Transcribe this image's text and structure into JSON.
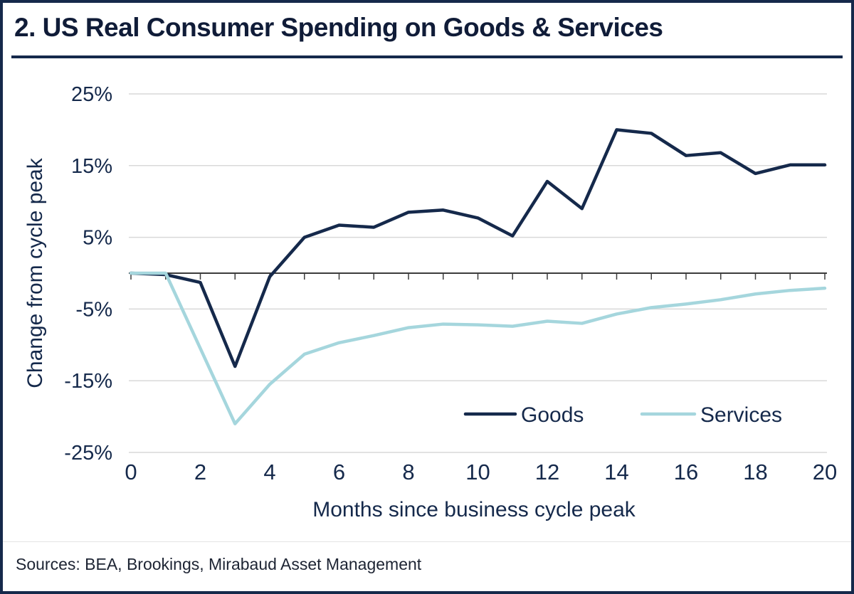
{
  "title": "2. US Real Consumer Spending on Goods & Services",
  "footer": {
    "sources": "Sources: BEA, Brookings, Mirabaud Asset Management"
  },
  "colors": {
    "navy": "#15294b",
    "title": "#101c38",
    "services": "#a5d6dd",
    "grid": "#d9d9d9",
    "zero": "#3c3c3c",
    "ink": "#1d2433"
  },
  "chart_data": {
    "type": "line",
    "title": "2. US Real Consumer Spending on Goods & Services",
    "xlabel": "Months since business cycle peak",
    "ylabel": "Change from cycle peak",
    "unit": "%",
    "x": [
      0,
      1,
      2,
      3,
      4,
      5,
      6,
      7,
      8,
      9,
      10,
      11,
      12,
      13,
      14,
      15,
      16,
      17,
      18,
      19,
      20
    ],
    "xticks": [
      0,
      2,
      4,
      6,
      8,
      10,
      12,
      14,
      16,
      18,
      20
    ],
    "yticks": [
      25,
      15,
      5,
      -5,
      -15,
      -25
    ],
    "xlim": [
      0,
      20
    ],
    "ylim": [
      -25,
      25
    ],
    "grid": "horizontal",
    "legend_position": "inside-bottom-right",
    "series": [
      {
        "name": "Goods",
        "color": "#15294b",
        "values": [
          0,
          -0.2,
          -1.3,
          -13,
          -0.5,
          5,
          6.7,
          6.4,
          8.5,
          8.8,
          7.7,
          5.2,
          12.8,
          9,
          20,
          19.5,
          16.4,
          16.8,
          13.9,
          15.1,
          15.1
        ]
      },
      {
        "name": "Services",
        "color": "#a5d6dd",
        "values": [
          0,
          0,
          -10.5,
          -21,
          -15.5,
          -11.3,
          -9.7,
          -8.7,
          -7.6,
          -7.1,
          -7.2,
          -7.4,
          -6.7,
          -7.0,
          -5.7,
          -4.8,
          -4.3,
          -3.7,
          -2.9,
          -2.4,
          -2.1
        ]
      }
    ]
  }
}
